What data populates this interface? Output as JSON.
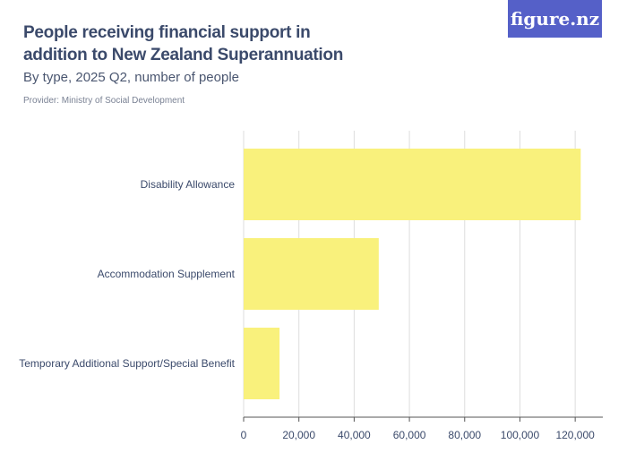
{
  "header": {
    "title": "People receiving financial support in addition to New Zealand Superannuation",
    "subtitle": "By type, 2025 Q2, number of people",
    "provider": "Provider: Ministry of Social Development",
    "logo": "figure.nz"
  },
  "chart_data": {
    "type": "bar",
    "orientation": "horizontal",
    "categories": [
      "Disability Allowance",
      "Accommodation Supplement",
      "Temporary Additional Support/Special Benefit"
    ],
    "values": [
      122000,
      48900,
      13000
    ],
    "xlim": [
      0,
      130000
    ],
    "xticks": [
      0,
      20000,
      40000,
      60000,
      80000,
      100000,
      120000
    ],
    "xtick_labels": [
      "0",
      "20,000",
      "40,000",
      "60,000",
      "80,000",
      "100,000",
      "120,000"
    ],
    "grid": true,
    "colors": {
      "bar": "#f9f17c",
      "grid": "#dddddd",
      "axis": "#555555",
      "logo_bg": "#5560c8"
    }
  }
}
